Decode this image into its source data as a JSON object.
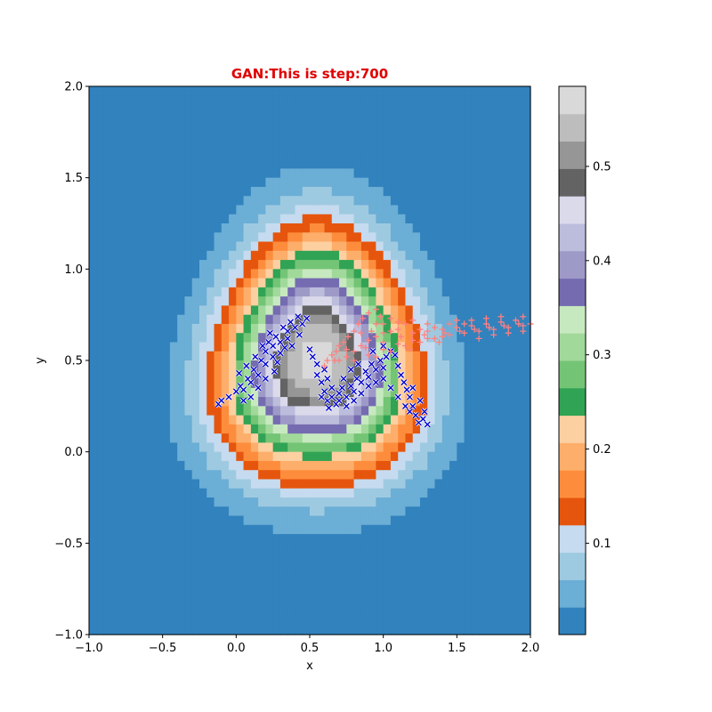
{
  "chart_data": {
    "type": "heatmap",
    "title": "GAN:This is step:700",
    "title_color": "#e00000",
    "xlabel": "x",
    "ylabel": "y",
    "xlim": [
      -1.0,
      2.0
    ],
    "ylim": [
      -1.0,
      2.0
    ],
    "xticks": [
      "−1.0",
      "−0.5",
      "0.0",
      "0.5",
      "1.0",
      "1.5",
      "2.0"
    ],
    "yticks": [
      "−1.0",
      "−0.5",
      "0.0",
      "0.5",
      "1.0",
      "1.5",
      "2.0"
    ],
    "colorbar": {
      "ticks": [
        "0.1",
        "0.2",
        "0.3",
        "0.4",
        "0.5"
      ],
      "tick_values": [
        0.1,
        0.2,
        0.3,
        0.4,
        0.5
      ],
      "range": [
        0.003,
        0.585
      ],
      "colormap": "tab20c",
      "levels": 20
    },
    "field": {
      "description_free": true,
      "peak_center": [
        0.55,
        0.5
      ],
      "peak_value": 0.57,
      "background_value": 0.01
    },
    "series": [
      {
        "marker": "x",
        "color": "#0000cc",
        "points": [
          [
            -0.12,
            0.26
          ],
          [
            -0.1,
            0.28
          ],
          [
            -0.05,
            0.3
          ],
          [
            0.0,
            0.33
          ],
          [
            0.03,
            0.36
          ],
          [
            0.05,
            0.34
          ],
          [
            0.08,
            0.4
          ],
          [
            0.1,
            0.38
          ],
          [
            0.12,
            0.45
          ],
          [
            0.15,
            0.42
          ],
          [
            0.17,
            0.5
          ],
          [
            0.2,
            0.48
          ],
          [
            0.2,
            0.55
          ],
          [
            0.22,
            0.6
          ],
          [
            0.25,
            0.58
          ],
          [
            0.27,
            0.63
          ],
          [
            0.3,
            0.6
          ],
          [
            0.32,
            0.68
          ],
          [
            0.35,
            0.66
          ],
          [
            0.37,
            0.71
          ],
          [
            0.4,
            0.68
          ],
          [
            0.42,
            0.74
          ],
          [
            0.45,
            0.7
          ],
          [
            0.48,
            0.73
          ],
          [
            0.23,
            0.65
          ],
          [
            0.18,
            0.58
          ],
          [
            0.13,
            0.52
          ],
          [
            0.07,
            0.47
          ],
          [
            0.02,
            0.43
          ],
          [
            0.25,
            0.52
          ],
          [
            0.3,
            0.54
          ],
          [
            0.33,
            0.57
          ],
          [
            0.38,
            0.58
          ],
          [
            0.28,
            0.49
          ],
          [
            0.5,
            0.56
          ],
          [
            0.52,
            0.52
          ],
          [
            0.55,
            0.48
          ],
          [
            0.55,
            0.42
          ],
          [
            0.58,
            0.38
          ],
          [
            0.6,
            0.33
          ],
          [
            0.62,
            0.28
          ],
          [
            0.65,
            0.3
          ],
          [
            0.68,
            0.26
          ],
          [
            0.7,
            0.32
          ],
          [
            0.72,
            0.35
          ],
          [
            0.75,
            0.3
          ],
          [
            0.78,
            0.36
          ],
          [
            0.8,
            0.33
          ],
          [
            0.82,
            0.4
          ],
          [
            0.85,
            0.38
          ],
          [
            0.88,
            0.44
          ],
          [
            0.9,
            0.41
          ],
          [
            0.92,
            0.48
          ],
          [
            0.95,
            0.45
          ],
          [
            0.98,
            0.5
          ],
          [
            1.0,
            0.46
          ],
          [
            1.02,
            0.52
          ],
          [
            1.05,
            0.55
          ],
          [
            1.08,
            0.53
          ],
          [
            1.1,
            0.47
          ],
          [
            1.12,
            0.42
          ],
          [
            1.14,
            0.38
          ],
          [
            1.16,
            0.34
          ],
          [
            1.18,
            0.3
          ],
          [
            1.2,
            0.25
          ],
          [
            1.22,
            0.2
          ],
          [
            1.24,
            0.16
          ],
          [
            1.27,
            0.18
          ],
          [
            1.3,
            0.15
          ],
          [
            1.15,
            0.25
          ],
          [
            1.1,
            0.3
          ],
          [
            1.05,
            0.35
          ],
          [
            1.0,
            0.4
          ],
          [
            0.95,
            0.38
          ],
          [
            0.9,
            0.36
          ],
          [
            0.85,
            0.32
          ],
          [
            0.8,
            0.28
          ],
          [
            0.75,
            0.25
          ],
          [
            0.7,
            0.28
          ],
          [
            0.65,
            0.35
          ],
          [
            0.62,
            0.4
          ],
          [
            0.6,
            0.45
          ],
          [
            0.58,
            0.3
          ],
          [
            0.63,
            0.24
          ],
          [
            0.73,
            0.4
          ],
          [
            0.78,
            0.45
          ],
          [
            0.83,
            0.48
          ],
          [
            0.93,
            0.55
          ],
          [
            1.0,
            0.58
          ],
          [
            1.25,
            0.28
          ],
          [
            1.2,
            0.35
          ],
          [
            1.18,
            0.22
          ],
          [
            1.28,
            0.22
          ],
          [
            0.1,
            0.3
          ],
          [
            0.15,
            0.35
          ],
          [
            0.05,
            0.28
          ],
          [
            0.35,
            0.62
          ],
          [
            0.43,
            0.64
          ],
          [
            0.26,
            0.44
          ],
          [
            0.2,
            0.4
          ]
        ]
      },
      {
        "marker": "+",
        "color": "#ff8080",
        "points": [
          [
            0.6,
            0.47
          ],
          [
            0.62,
            0.5
          ],
          [
            0.65,
            0.53
          ],
          [
            0.68,
            0.55
          ],
          [
            0.7,
            0.58
          ],
          [
            0.73,
            0.6
          ],
          [
            0.76,
            0.63
          ],
          [
            0.8,
            0.66
          ],
          [
            0.83,
            0.7
          ],
          [
            0.86,
            0.73
          ],
          [
            0.9,
            0.76
          ],
          [
            0.95,
            0.78
          ],
          [
            0.7,
            0.5
          ],
          [
            0.75,
            0.52
          ],
          [
            0.8,
            0.55
          ],
          [
            0.85,
            0.58
          ],
          [
            0.9,
            0.61
          ],
          [
            0.95,
            0.63
          ],
          [
            1.0,
            0.65
          ],
          [
            1.05,
            0.66
          ],
          [
            1.1,
            0.67
          ],
          [
            0.8,
            0.5
          ],
          [
            0.9,
            0.53
          ],
          [
            1.0,
            0.56
          ],
          [
            1.1,
            0.59
          ],
          [
            1.2,
            0.61
          ],
          [
            1.3,
            0.62
          ],
          [
            1.4,
            0.63
          ],
          [
            0.95,
            0.52
          ],
          [
            1.05,
            0.55
          ],
          [
            1.15,
            0.58
          ],
          [
            1.25,
            0.6
          ],
          [
            1.35,
            0.62
          ],
          [
            1.45,
            0.64
          ],
          [
            1.55,
            0.65
          ],
          [
            1.65,
            0.66
          ],
          [
            1.75,
            0.67
          ],
          [
            1.85,
            0.68
          ],
          [
            1.95,
            0.69
          ],
          [
            2.0,
            0.7
          ],
          [
            1.2,
            0.65
          ],
          [
            1.3,
            0.66
          ],
          [
            1.4,
            0.67
          ],
          [
            1.5,
            0.68
          ],
          [
            1.6,
            0.69
          ],
          [
            1.7,
            0.7
          ],
          [
            1.8,
            0.71
          ],
          [
            1.9,
            0.72
          ],
          [
            1.0,
            0.7
          ],
          [
            1.1,
            0.71
          ],
          [
            1.2,
            0.72
          ],
          [
            1.3,
            0.7
          ],
          [
            1.5,
            0.72
          ],
          [
            1.6,
            0.72
          ],
          [
            1.7,
            0.73
          ],
          [
            1.8,
            0.74
          ],
          [
            1.95,
            0.74
          ],
          [
            0.85,
            0.65
          ],
          [
            0.95,
            0.7
          ],
          [
            1.05,
            0.73
          ],
          [
            1.15,
            0.7
          ],
          [
            1.25,
            0.67
          ],
          [
            1.35,
            0.68
          ],
          [
            1.45,
            0.7
          ],
          [
            1.55,
            0.7
          ],
          [
            1.65,
            0.62
          ],
          [
            1.75,
            0.64
          ],
          [
            1.85,
            0.65
          ],
          [
            1.95,
            0.66
          ],
          [
            1.0,
            0.6
          ],
          [
            0.88,
            0.57
          ],
          [
            0.75,
            0.56
          ],
          [
            0.67,
            0.5
          ],
          [
            1.12,
            0.63
          ],
          [
            1.28,
            0.64
          ],
          [
            1.42,
            0.65
          ],
          [
            1.62,
            0.67
          ],
          [
            1.82,
            0.69
          ],
          [
            1.92,
            0.7
          ],
          [
            1.72,
            0.68
          ],
          [
            1.52,
            0.66
          ],
          [
            1.38,
            0.6
          ],
          [
            1.18,
            0.56
          ],
          [
            0.92,
            0.66
          ],
          [
            0.98,
            0.74
          ]
        ]
      }
    ]
  },
  "colors": {
    "tab20c": [
      "#3182bd",
      "#6baed6",
      "#9ecae1",
      "#c6dbef",
      "#e6550d",
      "#fd8d3c",
      "#fdae6b",
      "#fdd0a2",
      "#31a354",
      "#74c476",
      "#a1d99b",
      "#c7e9c0",
      "#756bb1",
      "#9e9ac8",
      "#bcbddc",
      "#dadaeb",
      "#636363",
      "#969696",
      "#bdbdbd",
      "#d9d9d9"
    ]
  }
}
